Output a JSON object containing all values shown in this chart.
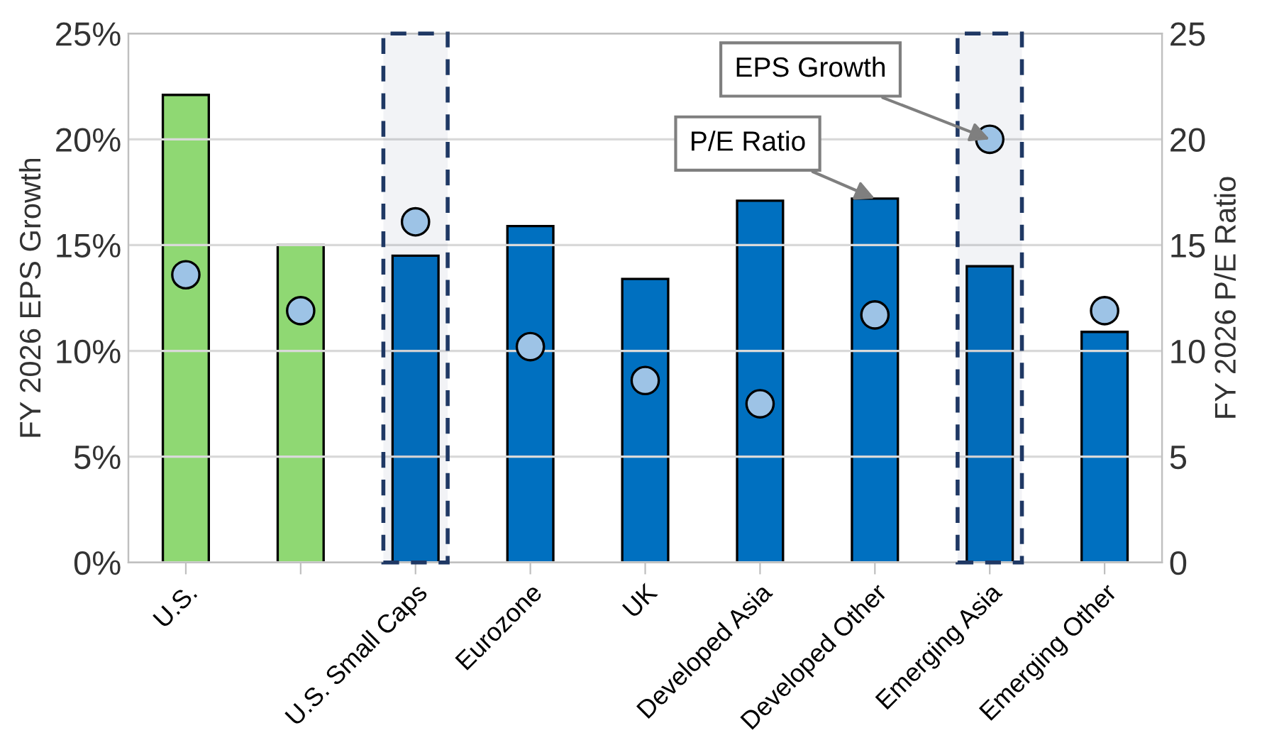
{
  "chart_data": {
    "type": "bar",
    "ylabel": "FY 2026 EPS Growth",
    "y2label": "FY 2026 P/E Ratio",
    "categories": [
      "U.S.",
      null,
      "U.S. Small Caps",
      "Eurozone",
      "UK",
      "Developed Asia",
      "Developed Other",
      "Emerging Asia",
      "Emerging Other"
    ],
    "series": [
      {
        "axis": "y2",
        "colors": [
          "#8fd873",
          "#8fd873",
          "#0070c0",
          "#0070c0",
          "#0070c0",
          "#0070c0",
          "#0070c0",
          "#0070c0",
          "#0070c0"
        ],
        "values": [
          22.1,
          15.0,
          14.5,
          15.9,
          13.4,
          17.1,
          17.2,
          14.0,
          10.9
        ]
      },
      {
        "type": "scatter",
        "axis": "y",
        "color": "#9dc3e6",
        "values": [
          13.6,
          11.9,
          16.1,
          10.2,
          8.6,
          7.5,
          11.7,
          20.0,
          11.9
        ]
      }
    ],
    "ylim": [
      0,
      25
    ],
    "yticks": [
      {
        "value": 0,
        "label": "0%"
      },
      {
        "value": 5,
        "label": "5%"
      },
      {
        "value": 10,
        "label": "10%"
      },
      {
        "value": 15,
        "label": "15%"
      },
      {
        "value": 20,
        "label": "20%"
      },
      {
        "value": 25,
        "label": "25%"
      }
    ],
    "y2lim": [
      0,
      25
    ],
    "y2ticks": [
      0,
      5,
      10,
      15,
      20,
      25
    ],
    "grid": "y",
    "marker": "circle",
    "bands": [
      {
        "axis": "x",
        "from": "U.S. Small Caps",
        "to": "U.S. Small Caps",
        "color": "#1f3864"
      },
      {
        "axis": "x",
        "from": "Emerging Asia",
        "to": "Emerging Asia",
        "color": "#1f3864"
      }
    ],
    "annotations": [
      {
        "text": "P/E Ratio",
        "x": "Developed Other",
        "y": 17.2
      },
      {
        "text": "EPS Growth",
        "x": "Emerging Asia",
        "y": 20.0
      }
    ]
  }
}
